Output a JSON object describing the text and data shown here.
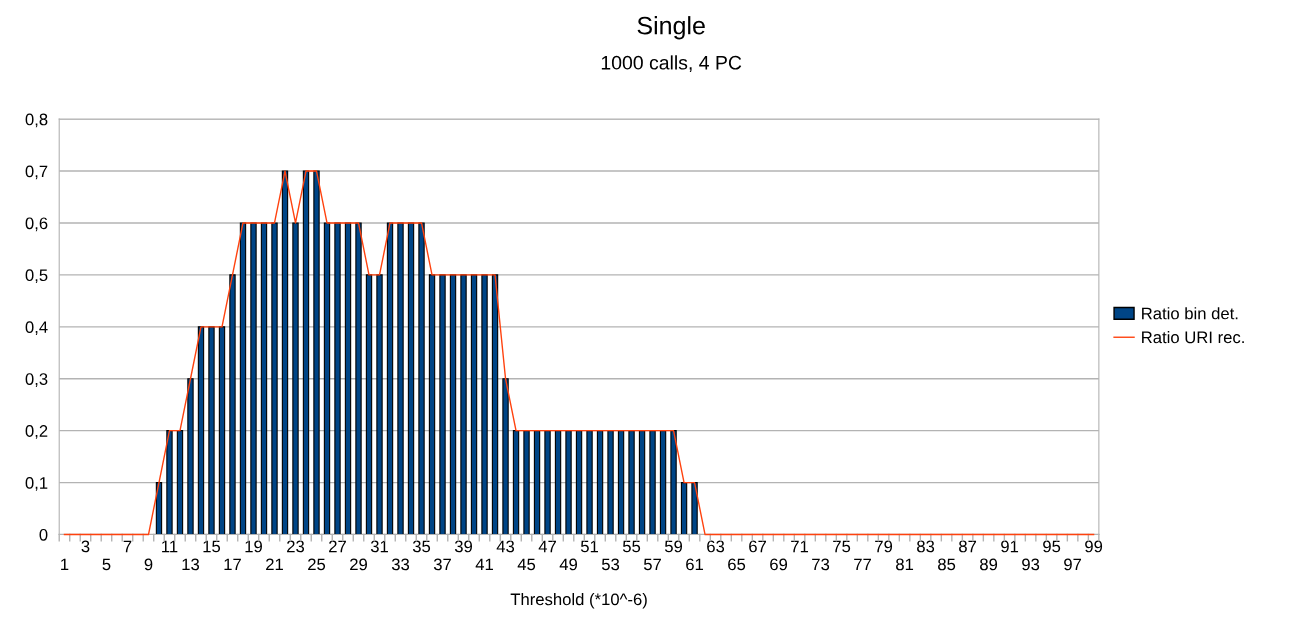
{
  "chart_data": {
    "type": "bar",
    "title": "Single",
    "subtitle": "1000 calls, 4 PC",
    "xlabel": "Threshold (*10^-6)",
    "categories": [
      "1",
      null,
      "3",
      null,
      "5",
      null,
      "7",
      null,
      "9",
      null,
      "11",
      null,
      "13",
      null,
      "15",
      null,
      "17",
      null,
      "19",
      null,
      "21",
      null,
      "23",
      null,
      "25",
      null,
      "27",
      null,
      "29",
      null,
      "31",
      null,
      "33",
      null,
      "35",
      null,
      "37",
      null,
      "39",
      null,
      "41",
      null,
      "43",
      null,
      "45",
      null,
      "47",
      null,
      "49",
      null,
      "51",
      null,
      "53",
      null,
      "55",
      null,
      "57",
      null,
      "59",
      null,
      "61",
      null,
      "63",
      null,
      "65",
      null,
      "67",
      null,
      "69",
      null,
      "71",
      null,
      "73",
      null,
      "75",
      null,
      "77",
      null,
      "79",
      null,
      "81",
      null,
      "83",
      null,
      "85",
      null,
      "87",
      null,
      "89",
      null,
      "91",
      null,
      "93",
      null,
      "95",
      null,
      "97",
      null,
      "99"
    ],
    "series": [
      {
        "name": "Ratio bin det.",
        "color": "#004586",
        "values": [
          0,
          0,
          0,
          0,
          0,
          0,
          0,
          0,
          0,
          0.1,
          0.2,
          0.2,
          0.3,
          0.4,
          0.4,
          0.4,
          0.5,
          0.6,
          0.6,
          0.6,
          0.6,
          0.7,
          0.6,
          0.7,
          0.7,
          0.6,
          0.6,
          0.6,
          0.6,
          0.5,
          0.5,
          0.6,
          0.6,
          0.6,
          0.6,
          0.5,
          0.5,
          0.5,
          0.5,
          0.5,
          0.5,
          0.5,
          0.3,
          0.2,
          0.2,
          0.2,
          0.2,
          0.2,
          0.2,
          0.2,
          0.2,
          0.2,
          0.2,
          0.2,
          0.2,
          0.2,
          0.2,
          0.2,
          0.2,
          0.1,
          0.1,
          0,
          0,
          0,
          0,
          0,
          0,
          0,
          0,
          0,
          0,
          0,
          0,
          0,
          0,
          0,
          0,
          0,
          0,
          0,
          0,
          0,
          0,
          0,
          0,
          0,
          0,
          0,
          0,
          0,
          0,
          0,
          0,
          0,
          0,
          0,
          0,
          0,
          0
        ]
      },
      {
        "name": "Ratio URI rec.",
        "type": "line",
        "color": "#ff420e",
        "values": [
          0,
          0,
          0,
          0,
          0,
          0,
          0,
          0,
          0,
          0.1,
          0.2,
          0.2,
          0.3,
          0.4,
          0.4,
          0.4,
          0.5,
          0.6,
          0.6,
          0.6,
          0.6,
          0.7,
          0.6,
          0.7,
          0.7,
          0.6,
          0.6,
          0.6,
          0.6,
          0.5,
          0.5,
          0.6,
          0.6,
          0.6,
          0.6,
          0.5,
          0.5,
          0.5,
          0.5,
          0.5,
          0.5,
          0.5,
          0.3,
          0.2,
          0.2,
          0.2,
          0.2,
          0.2,
          0.2,
          0.2,
          0.2,
          0.2,
          0.2,
          0.2,
          0.2,
          0.2,
          0.2,
          0.2,
          0.2,
          0.1,
          0.1,
          0,
          0,
          0,
          0,
          0,
          0,
          0,
          0,
          0,
          0,
          0,
          0,
          0,
          0,
          0,
          0,
          0,
          0,
          0,
          0,
          0,
          0,
          0,
          0,
          0,
          0,
          0,
          0,
          0,
          0,
          0,
          0,
          0,
          0,
          0,
          0,
          0,
          0
        ]
      }
    ],
    "ylim": [
      0,
      0.8
    ],
    "yticks": [
      {
        "value": 0,
        "label": "0"
      },
      {
        "value": 0.1,
        "label": "0,1"
      },
      {
        "value": 0.2,
        "label": "0,2"
      },
      {
        "value": 0.3,
        "label": "0,3"
      },
      {
        "value": 0.4,
        "label": "0,4"
      },
      {
        "value": 0.5,
        "label": "0,5"
      },
      {
        "value": 0.6,
        "label": "0,6"
      },
      {
        "value": 0.7,
        "label": "0,7"
      },
      {
        "value": 0.8,
        "label": "0,8"
      }
    ],
    "grid": "y",
    "legend": "right",
    "marker": "none",
    "line_style": "solid"
  }
}
